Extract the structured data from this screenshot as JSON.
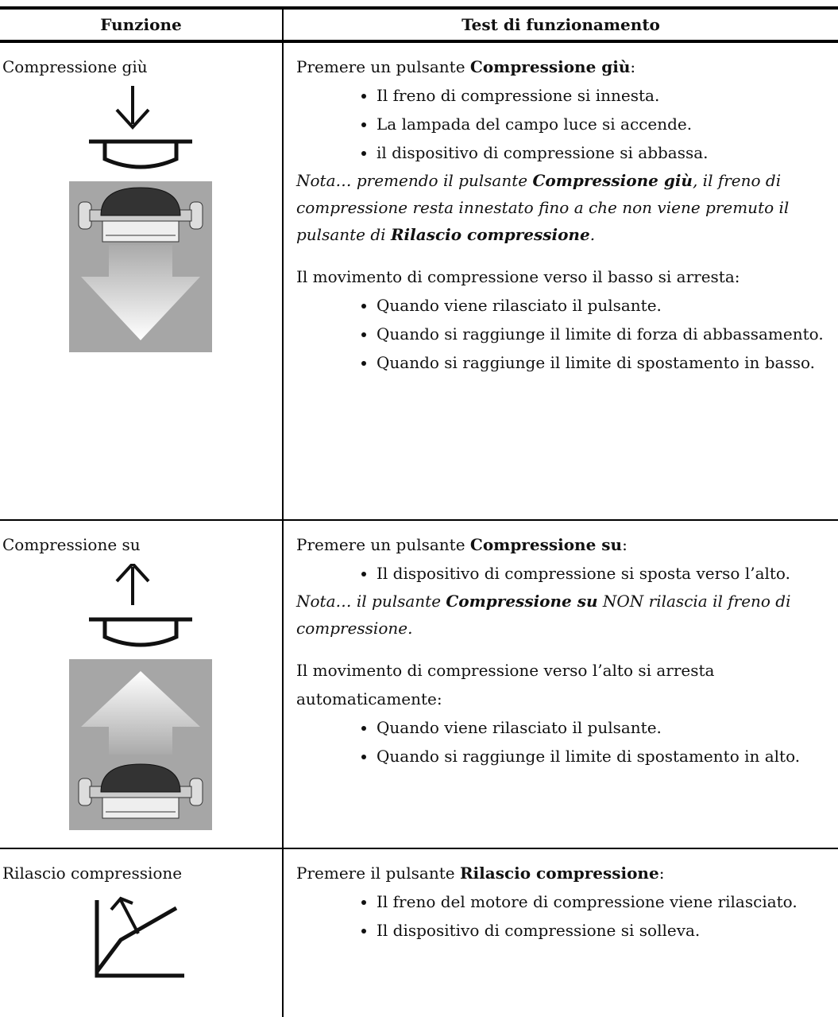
{
  "table": {
    "header": [
      "Funzione",
      "Test di funzionamento"
    ],
    "rows": [
      {
        "function": "Compressione giù",
        "blocks": [
          {
            "kind": "para",
            "runs": [
              {
                "text": "Premere un pulsante "
              },
              {
                "text": "Compressione giù",
                "bold": true
              },
              {
                "text": ":"
              }
            ]
          },
          {
            "kind": "bullets",
            "items": [
              "Il freno di compressione si innesta.",
              "La lampada del campo luce si accende.",
              "il dispositivo di compressione si abbassa."
            ]
          },
          {
            "kind": "note",
            "runs": [
              {
                "text": "Nota… premendo il pulsante "
              },
              {
                "text": "Compressione giù",
                "bold": true
              },
              {
                "text": ", il freno di compressione resta innestato fino a che non viene premuto il pulsante di "
              },
              {
                "text": "Rilascio compressione",
                "bold": true
              },
              {
                "text": "."
              }
            ]
          },
          {
            "kind": "para",
            "runs": [
              {
                "text": "Il movimento di compressione verso il basso si arresta:"
              }
            ]
          },
          {
            "kind": "bullets",
            "items": [
              "Quando viene rilasciato il pulsante.",
              "Quando si raggiunge il limite di forza di abbassamento.",
              "Quando si raggiunge il limite di spostamento in basso."
            ]
          }
        ]
      },
      {
        "function": "Compressione su",
        "blocks": [
          {
            "kind": "para",
            "runs": [
              {
                "text": "Premere un pulsante "
              },
              {
                "text": "Compressione su",
                "bold": true
              },
              {
                "text": ":"
              }
            ]
          },
          {
            "kind": "bullets",
            "items": [
              "Il dispositivo di compressione si sposta verso l’alto."
            ]
          },
          {
            "kind": "note",
            "runs": [
              {
                "text": "Nota… il pulsante "
              },
              {
                "text": "Compressione su",
                "bold": true
              },
              {
                "text": " NON rilascia il freno di compressione."
              }
            ]
          },
          {
            "kind": "para",
            "runs": [
              {
                "text": "Il movimento di compressione verso l’alto si arresta automaticamente:"
              }
            ]
          },
          {
            "kind": "bullets",
            "items": [
              "Quando viene rilasciato il pulsante.",
              "Quando si raggiunge il limite di spostamento in alto."
            ]
          }
        ]
      },
      {
        "function": "Rilascio compressione",
        "blocks": [
          {
            "kind": "para",
            "runs": [
              {
                "text": "Premere il pulsante "
              },
              {
                "text": "Rilascio compressione",
                "bold": true
              },
              {
                "text": ":"
              }
            ]
          },
          {
            "kind": "bullets",
            "items": [
              "Il freno del motore di compressione viene rilasciato.",
              "Il dispositivo di compressione si solleva."
            ]
          }
        ]
      }
    ]
  }
}
